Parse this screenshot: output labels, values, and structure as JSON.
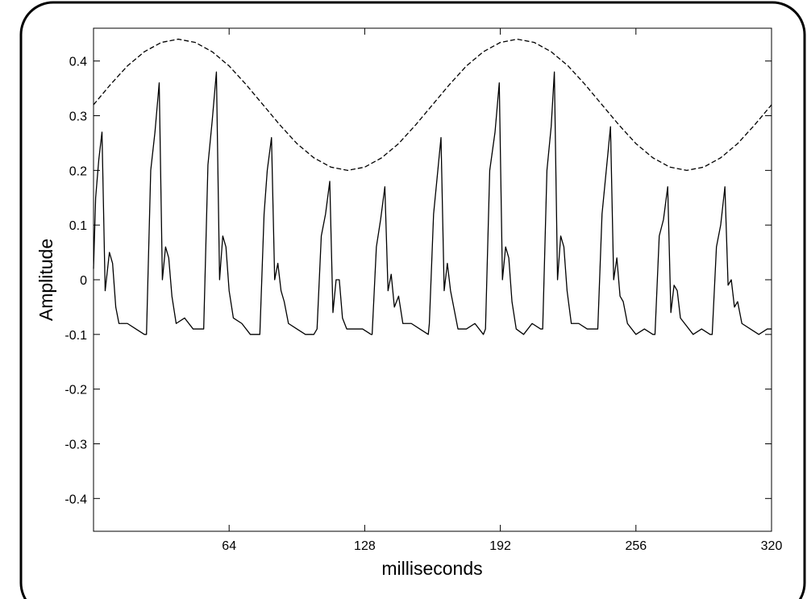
{
  "chart_data": {
    "type": "line",
    "xlabel": "milliseconds",
    "ylabel": "Amplitude",
    "xlim": [
      0,
      320
    ],
    "xticks": [
      64,
      128,
      192,
      256,
      320
    ],
    "ylim": [
      -0.46,
      0.46
    ],
    "yticks": [
      -0.4,
      -0.3,
      -0.2,
      -0.1,
      0,
      0.1,
      0.2,
      0.3,
      0.4
    ],
    "series": [
      {
        "color": "#000000",
        "dash": false,
        "x": [
          0,
          1,
          2.5,
          4,
          5.5,
          7.5,
          9,
          10.5,
          12,
          16,
          20,
          24,
          25,
          27,
          29,
          31,
          32.5,
          34,
          35.5,
          37,
          39,
          43,
          47,
          51,
          52,
          54,
          56,
          58,
          59.5,
          61,
          62.5,
          64,
          66,
          70,
          74,
          78,
          78.5,
          80.5,
          82,
          84,
          85.5,
          87,
          88.5,
          90,
          92,
          96,
          100,
          104,
          105.5,
          107.5,
          109.5,
          111.5,
          113,
          114.5,
          116,
          117.5,
          119.5,
          123,
          127,
          131,
          131.5,
          133.5,
          135.5,
          137.5,
          139,
          140.5,
          142,
          144,
          146,
          150,
          154,
          158,
          158.5,
          160.5,
          162,
          164,
          165.5,
          167,
          168.5,
          170,
          172,
          176,
          180,
          184,
          185,
          187,
          189.5,
          191.5,
          193,
          194.5,
          196,
          197.5,
          199.5,
          203,
          207,
          211,
          212,
          214,
          216,
          217.5,
          219,
          220.5,
          222,
          223.5,
          225.5,
          229,
          233,
          237,
          238,
          240,
          242,
          244,
          245.5,
          247,
          248.5,
          250,
          252,
          256,
          260,
          264,
          265,
          267,
          269,
          271,
          272.5,
          274,
          275.5,
          277,
          279,
          283,
          287,
          291,
          292,
          294,
          296,
          298,
          299.5,
          301,
          302.5,
          304,
          306,
          310,
          314,
          318,
          320
        ],
        "values": [
          0.02,
          0.15,
          0.22,
          0.27,
          -0.02,
          0.05,
          0.03,
          -0.05,
          -0.08,
          -0.08,
          -0.09,
          -0.1,
          -0.1,
          0.2,
          0.27,
          0.36,
          0,
          0.06,
          0.04,
          -0.03,
          -0.08,
          -0.07,
          -0.09,
          -0.09,
          -0.09,
          0.21,
          0.29,
          0.38,
          0,
          0.08,
          0.06,
          -0.02,
          -0.07,
          -0.08,
          -0.1,
          -0.1,
          -0.1,
          0.12,
          0.2,
          0.26,
          0,
          0.03,
          -0.02,
          -0.04,
          -0.08,
          -0.09,
          -0.1,
          -0.1,
          -0.09,
          0.08,
          0.12,
          0.18,
          -0.06,
          0,
          0,
          -0.07,
          -0.09,
          -0.09,
          -0.09,
          -0.1,
          -0.1,
          0.06,
          0.11,
          0.17,
          -0.02,
          0.01,
          -0.05,
          -0.03,
          -0.08,
          -0.08,
          -0.09,
          -0.1,
          -0.08,
          0.12,
          0.18,
          0.26,
          -0.02,
          0.03,
          -0.02,
          -0.05,
          -0.09,
          -0.09,
          -0.08,
          -0.1,
          -0.09,
          0.2,
          0.27,
          0.36,
          0,
          0.06,
          0.04,
          -0.04,
          -0.09,
          -0.1,
          -0.08,
          -0.09,
          -0.09,
          0.2,
          0.28,
          0.38,
          0,
          0.08,
          0.06,
          -0.02,
          -0.08,
          -0.08,
          -0.09,
          -0.09,
          -0.09,
          0.12,
          0.2,
          0.28,
          0,
          0.04,
          -0.03,
          -0.04,
          -0.08,
          -0.1,
          -0.09,
          -0.1,
          -0.1,
          0.08,
          0.11,
          0.17,
          -0.06,
          -0.01,
          -0.02,
          -0.07,
          -0.08,
          -0.1,
          -0.09,
          -0.1,
          -0.1,
          0.06,
          0.1,
          0.17,
          -0.01,
          0,
          -0.05,
          -0.04,
          -0.08,
          -0.09,
          -0.1,
          -0.09,
          -0.09
        ]
      },
      {
        "color": "#000000",
        "dash": true,
        "x": [
          0,
          8,
          16,
          24,
          32,
          40,
          48,
          56,
          64,
          72,
          80,
          88,
          96,
          104,
          112,
          120,
          128,
          136,
          144,
          152,
          160,
          168,
          176,
          184,
          192,
          200,
          208,
          216,
          224,
          232,
          240,
          248,
          256,
          264,
          272,
          280,
          288,
          296,
          304,
          312,
          320
        ],
        "values": [
          0.32,
          0.357,
          0.391,
          0.417,
          0.434,
          0.44,
          0.434,
          0.417,
          0.391,
          0.357,
          0.32,
          0.283,
          0.249,
          0.223,
          0.206,
          0.2,
          0.206,
          0.223,
          0.249,
          0.283,
          0.32,
          0.357,
          0.391,
          0.417,
          0.434,
          0.44,
          0.434,
          0.417,
          0.391,
          0.357,
          0.32,
          0.283,
          0.249,
          0.223,
          0.206,
          0.2,
          0.206,
          0.223,
          0.249,
          0.283,
          0.32
        ]
      }
    ]
  }
}
